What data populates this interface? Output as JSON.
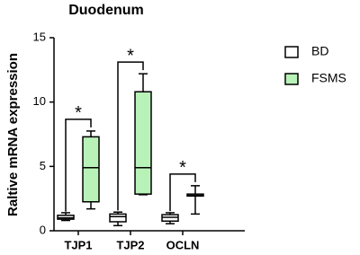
{
  "chart_data": {
    "type": "box",
    "title": "Duodenum",
    "y_label": "Raltive mRNA expression",
    "categories": [
      "TJP1",
      "TJP2",
      "OCLN"
    ],
    "series": [
      {
        "name": "BD",
        "color": "#ffffff",
        "values": [
          [
            0.8,
            0.9,
            1.0,
            1.2,
            1.4
          ],
          [
            0.4,
            0.7,
            1.1,
            1.3,
            1.45
          ],
          [
            0.55,
            0.75,
            1.05,
            1.25,
            1.4
          ]
        ]
      },
      {
        "name": "FSMS",
        "color": "#b9f2b9",
        "values": [
          [
            1.7,
            2.25,
            4.9,
            7.3,
            7.75
          ],
          [
            2.8,
            2.85,
            4.9,
            10.8,
            12.2
          ],
          [
            1.3,
            2.7,
            2.75,
            2.85,
            3.5
          ]
        ]
      }
    ],
    "significance": [
      "*",
      "*",
      "*"
    ],
    "ylim": [
      0,
      15
    ],
    "yticks": [
      0,
      5,
      10,
      15
    ],
    "legend": "right"
  }
}
